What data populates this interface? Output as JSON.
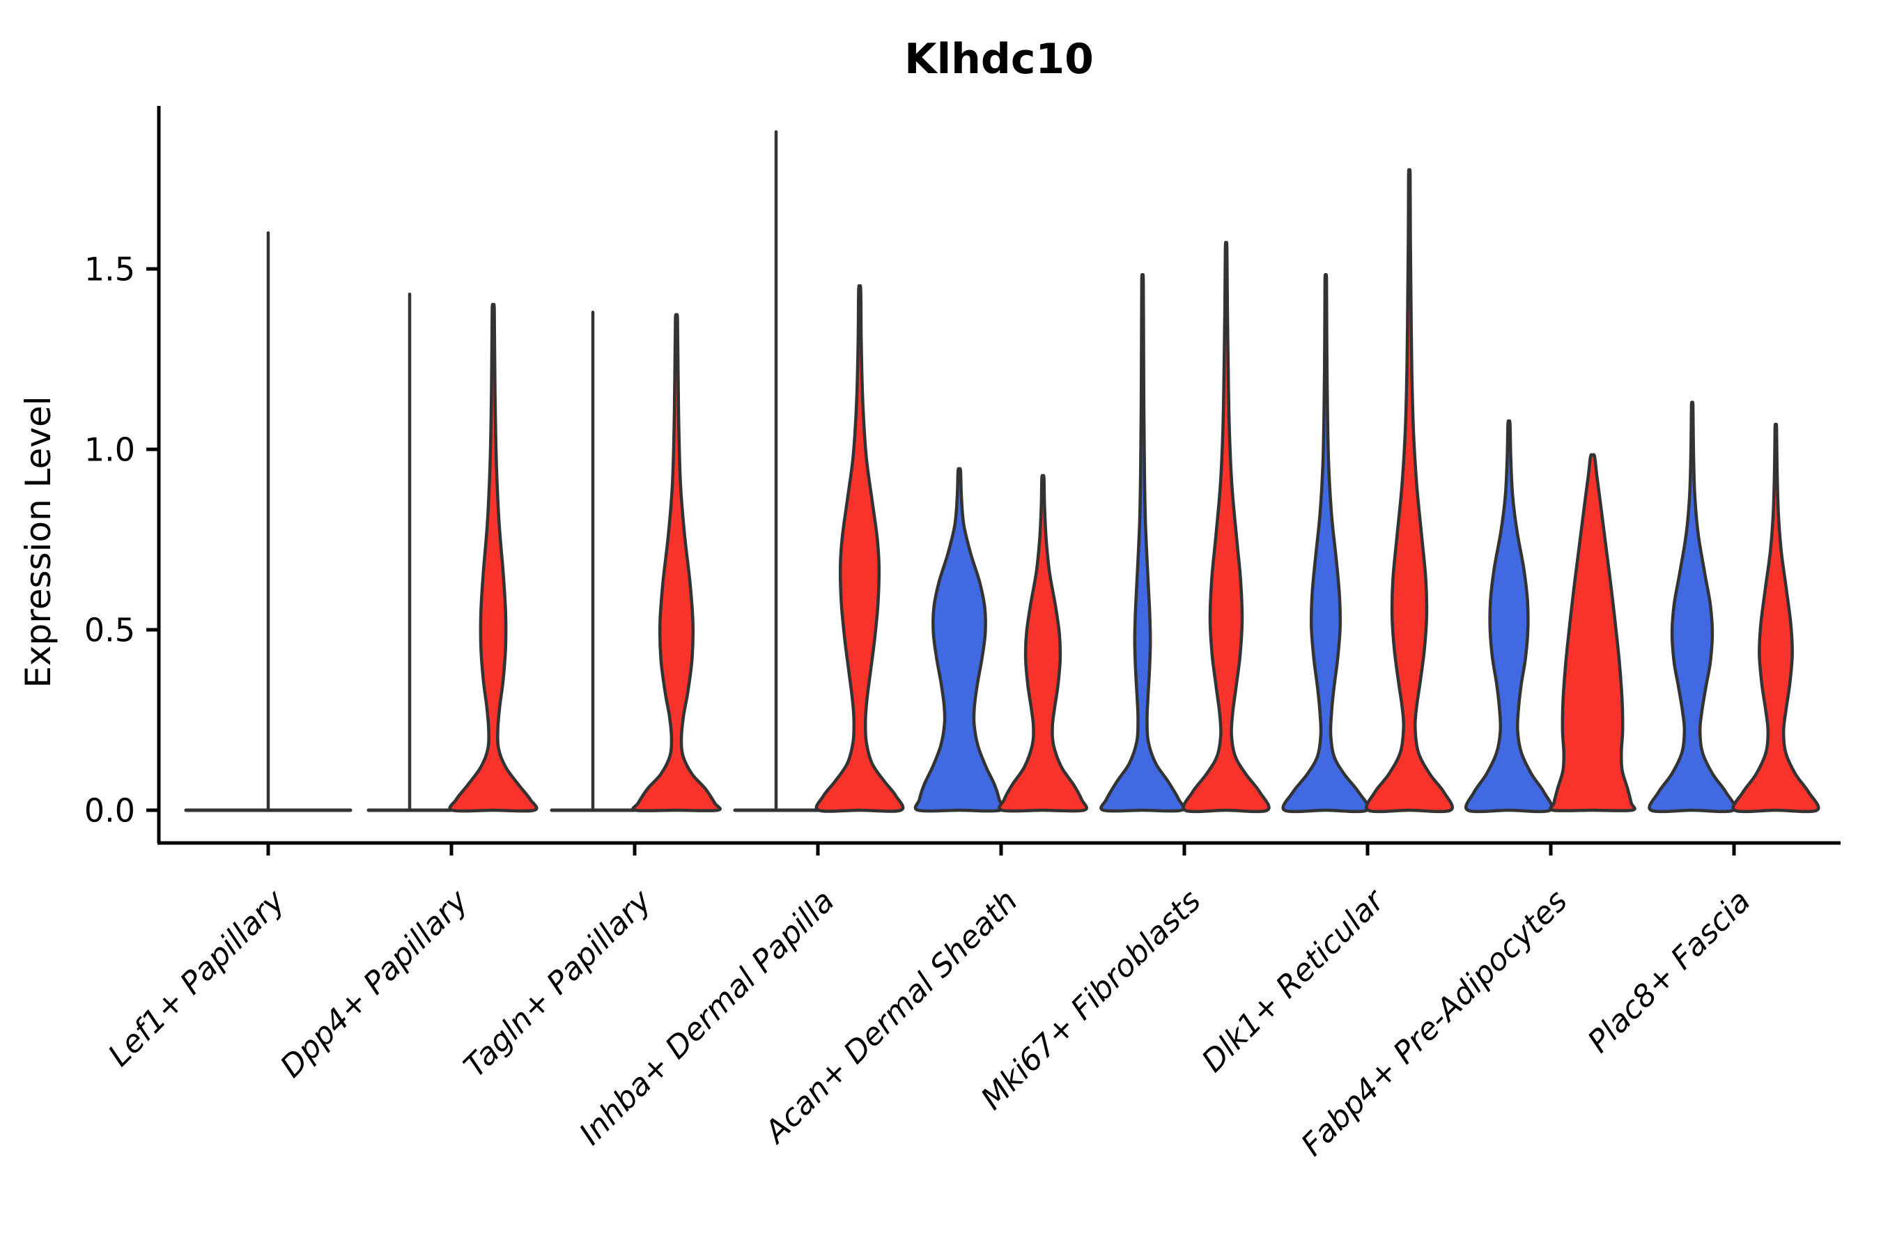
{
  "chart_data": {
    "type": "violin",
    "title": "Klhdc10",
    "ylabel": "Expression Level",
    "xlabel": "",
    "grid": false,
    "legend": "none",
    "ylim": [
      -0.06,
      1.95
    ],
    "ytick_labels": [
      "0.0",
      "0.5",
      "1.0",
      "1.5"
    ],
    "ytick_values": [
      0.0,
      0.5,
      1.0,
      1.5
    ],
    "palette": {
      "blue": "#4169E1",
      "red": "#F8332B",
      "outline": "#333333"
    },
    "categories": [
      {
        "label": "Lef1+ Papillary",
        "violins": [
          {
            "color": "blue",
            "style": "flat",
            "max": 1.6,
            "offset": 0,
            "width": 2
          }
        ]
      },
      {
        "label": "Dpp4+ Papillary",
        "violins": [
          {
            "color": "blue",
            "style": "flat",
            "max": 1.43,
            "offset": -1,
            "width": 1
          },
          {
            "color": "red",
            "style": "curve",
            "max": 1.39,
            "offset": 1,
            "width": 1,
            "profile": [
              [
                1.39,
                0.025
              ],
              [
                1.25,
                0.035
              ],
              [
                1.1,
                0.05
              ],
              [
                0.95,
                0.08
              ],
              [
                0.8,
                0.14
              ],
              [
                0.66,
                0.24
              ],
              [
                0.55,
                0.3
              ],
              [
                0.45,
                0.3
              ],
              [
                0.36,
                0.24
              ],
              [
                0.28,
                0.15
              ],
              [
                0.22,
                0.11
              ],
              [
                0.17,
                0.13
              ],
              [
                0.12,
                0.3
              ],
              [
                0.07,
                0.62
              ],
              [
                0.03,
                0.9
              ],
              [
                0.0,
                1.0
              ]
            ]
          }
        ]
      },
      {
        "label": "Tagln+ Papillary",
        "violins": [
          {
            "color": "blue",
            "style": "flat",
            "max": 1.38,
            "offset": -1,
            "width": 1
          },
          {
            "color": "red",
            "style": "curve",
            "max": 1.36,
            "offset": 1,
            "width": 1,
            "profile": [
              [
                1.36,
                0.025
              ],
              [
                1.2,
                0.04
              ],
              [
                1.05,
                0.06
              ],
              [
                0.9,
                0.1
              ],
              [
                0.76,
                0.2
              ],
              [
                0.63,
                0.33
              ],
              [
                0.52,
                0.4
              ],
              [
                0.42,
                0.38
              ],
              [
                0.33,
                0.28
              ],
              [
                0.26,
                0.17
              ],
              [
                0.2,
                0.12
              ],
              [
                0.15,
                0.16
              ],
              [
                0.1,
                0.38
              ],
              [
                0.06,
                0.7
              ],
              [
                0.02,
                0.93
              ],
              [
                0.0,
                1.0
              ]
            ]
          }
        ]
      },
      {
        "label": "Inhba+ Dermal Papilla",
        "violins": [
          {
            "color": "blue",
            "style": "flat",
            "max": 1.88,
            "offset": -1,
            "width": 1
          },
          {
            "color": "red",
            "style": "curve",
            "max": 1.44,
            "offset": 1,
            "width": 1,
            "profile": [
              [
                1.44,
                0.025
              ],
              [
                1.28,
                0.04
              ],
              [
                1.12,
                0.08
              ],
              [
                0.98,
                0.16
              ],
              [
                0.86,
                0.3
              ],
              [
                0.76,
                0.42
              ],
              [
                0.68,
                0.47
              ],
              [
                0.58,
                0.45
              ],
              [
                0.48,
                0.37
              ],
              [
                0.39,
                0.27
              ],
              [
                0.31,
                0.18
              ],
              [
                0.25,
                0.14
              ],
              [
                0.19,
                0.16
              ],
              [
                0.13,
                0.3
              ],
              [
                0.08,
                0.6
              ],
              [
                0.04,
                0.88
              ],
              [
                0.0,
                1.0
              ]
            ]
          }
        ]
      },
      {
        "label": "Acan+ Dermal Sheath",
        "violins": [
          {
            "color": "blue",
            "style": "curve",
            "max": 0.94,
            "offset": -1,
            "width": 1,
            "profile": [
              [
                0.94,
                0.03
              ],
              [
                0.87,
                0.05
              ],
              [
                0.79,
                0.11
              ],
              [
                0.71,
                0.28
              ],
              [
                0.63,
                0.5
              ],
              [
                0.56,
                0.62
              ],
              [
                0.49,
                0.63
              ],
              [
                0.42,
                0.55
              ],
              [
                0.35,
                0.44
              ],
              [
                0.29,
                0.37
              ],
              [
                0.24,
                0.36
              ],
              [
                0.18,
                0.45
              ],
              [
                0.12,
                0.65
              ],
              [
                0.07,
                0.86
              ],
              [
                0.03,
                0.97
              ],
              [
                0.0,
                1.0
              ]
            ]
          },
          {
            "color": "red",
            "style": "curve",
            "max": 0.92,
            "offset": 1,
            "width": 1,
            "profile": [
              [
                0.92,
                0.025
              ],
              [
                0.84,
                0.04
              ],
              [
                0.75,
                0.08
              ],
              [
                0.66,
                0.16
              ],
              [
                0.57,
                0.3
              ],
              [
                0.49,
                0.4
              ],
              [
                0.42,
                0.42
              ],
              [
                0.35,
                0.37
              ],
              [
                0.28,
                0.28
              ],
              [
                0.23,
                0.23
              ],
              [
                0.18,
                0.26
              ],
              [
                0.12,
                0.45
              ],
              [
                0.07,
                0.75
              ],
              [
                0.03,
                0.94
              ],
              [
                0.0,
                1.0
              ]
            ]
          }
        ]
      },
      {
        "label": "Mki67+ Fibroblasts",
        "violins": [
          {
            "color": "blue",
            "style": "curve",
            "max": 1.47,
            "offset": -1,
            "width": 1,
            "profile": [
              [
                1.47,
                0.018
              ],
              [
                1.3,
                0.025
              ],
              [
                1.12,
                0.032
              ],
              [
                0.95,
                0.045
              ],
              [
                0.8,
                0.07
              ],
              [
                0.67,
                0.12
              ],
              [
                0.56,
                0.17
              ],
              [
                0.47,
                0.19
              ],
              [
                0.39,
                0.17
              ],
              [
                0.31,
                0.13
              ],
              [
                0.25,
                0.11
              ],
              [
                0.19,
                0.14
              ],
              [
                0.13,
                0.32
              ],
              [
                0.08,
                0.62
              ],
              [
                0.03,
                0.88
              ],
              [
                0.0,
                0.95
              ]
            ]
          },
          {
            "color": "red",
            "style": "curve",
            "max": 1.56,
            "offset": 1,
            "width": 1,
            "profile": [
              [
                1.56,
                0.018
              ],
              [
                1.4,
                0.03
              ],
              [
                1.22,
                0.05
              ],
              [
                1.05,
                0.08
              ],
              [
                0.9,
                0.14
              ],
              [
                0.76,
                0.25
              ],
              [
                0.64,
                0.35
              ],
              [
                0.53,
                0.39
              ],
              [
                0.43,
                0.34
              ],
              [
                0.34,
                0.24
              ],
              [
                0.27,
                0.16
              ],
              [
                0.21,
                0.13
              ],
              [
                0.15,
                0.22
              ],
              [
                0.1,
                0.48
              ],
              [
                0.05,
                0.82
              ],
              [
                0.0,
                1.0
              ]
            ]
          }
        ]
      },
      {
        "label": "Dlk1+ Reticular",
        "violins": [
          {
            "color": "blue",
            "style": "curve",
            "max": 1.47,
            "offset": -1,
            "width": 1,
            "profile": [
              [
                1.47,
                0.018
              ],
              [
                1.3,
                0.025
              ],
              [
                1.12,
                0.04
              ],
              [
                0.96,
                0.07
              ],
              [
                0.82,
                0.14
              ],
              [
                0.7,
                0.25
              ],
              [
                0.6,
                0.33
              ],
              [
                0.51,
                0.35
              ],
              [
                0.42,
                0.29
              ],
              [
                0.34,
                0.2
              ],
              [
                0.27,
                0.14
              ],
              [
                0.21,
                0.12
              ],
              [
                0.15,
                0.2
              ],
              [
                0.1,
                0.45
              ],
              [
                0.05,
                0.8
              ],
              [
                0.0,
                1.0
              ]
            ]
          },
          {
            "color": "red",
            "style": "curve",
            "max": 1.76,
            "offset": 1,
            "width": 1,
            "profile": [
              [
                1.76,
                0.018
              ],
              [
                1.58,
                0.025
              ],
              [
                1.4,
                0.04
              ],
              [
                1.22,
                0.06
              ],
              [
                1.05,
                0.1
              ],
              [
                0.9,
                0.18
              ],
              [
                0.76,
                0.3
              ],
              [
                0.64,
                0.4
              ],
              [
                0.54,
                0.42
              ],
              [
                0.45,
                0.37
              ],
              [
                0.36,
                0.27
              ],
              [
                0.29,
                0.18
              ],
              [
                0.23,
                0.14
              ],
              [
                0.16,
                0.22
              ],
              [
                0.1,
                0.5
              ],
              [
                0.05,
                0.84
              ],
              [
                0.0,
                1.0
              ]
            ]
          }
        ]
      },
      {
        "label": "Fabp4+ Pre-Adipocytes",
        "violins": [
          {
            "color": "blue",
            "style": "curve",
            "max": 1.07,
            "offset": -1,
            "width": 1,
            "profile": [
              [
                1.07,
                0.025
              ],
              [
                0.97,
                0.045
              ],
              [
                0.87,
                0.09
              ],
              [
                0.77,
                0.2
              ],
              [
                0.67,
                0.36
              ],
              [
                0.58,
                0.45
              ],
              [
                0.5,
                0.46
              ],
              [
                0.42,
                0.4
              ],
              [
                0.35,
                0.3
              ],
              [
                0.28,
                0.23
              ],
              [
                0.22,
                0.21
              ],
              [
                0.16,
                0.3
              ],
              [
                0.1,
                0.55
              ],
              [
                0.05,
                0.85
              ],
              [
                0.0,
                1.0
              ]
            ]
          },
          {
            "color": "red",
            "style": "curve",
            "max": 0.98,
            "offset": 1,
            "width": 1,
            "profile": [
              [
                0.98,
                0.05
              ],
              [
                0.93,
                0.1
              ],
              [
                0.87,
                0.17
              ],
              [
                0.79,
                0.26
              ],
              [
                0.7,
                0.36
              ],
              [
                0.6,
                0.47
              ],
              [
                0.5,
                0.57
              ],
              [
                0.4,
                0.66
              ],
              [
                0.3,
                0.72
              ],
              [
                0.22,
                0.73
              ],
              [
                0.16,
                0.7
              ],
              [
                0.11,
                0.72
              ],
              [
                0.06,
                0.85
              ],
              [
                0.02,
                0.94
              ],
              [
                0.0,
                0.96
              ]
            ]
          }
        ]
      },
      {
        "label": "Plac8+ Fascia",
        "violins": [
          {
            "color": "blue",
            "style": "curve",
            "max": 1.12,
            "offset": -1,
            "width": 1,
            "profile": [
              [
                1.12,
                0.018
              ],
              [
                1.0,
                0.03
              ],
              [
                0.88,
                0.06
              ],
              [
                0.77,
                0.14
              ],
              [
                0.66,
                0.3
              ],
              [
                0.57,
                0.44
              ],
              [
                0.49,
                0.49
              ],
              [
                0.41,
                0.44
              ],
              [
                0.34,
                0.33
              ],
              [
                0.27,
                0.23
              ],
              [
                0.22,
                0.19
              ],
              [
                0.16,
                0.25
              ],
              [
                0.1,
                0.5
              ],
              [
                0.05,
                0.82
              ],
              [
                0.0,
                1.0
              ]
            ]
          },
          {
            "color": "red",
            "style": "curve",
            "max": 1.06,
            "offset": 1,
            "width": 1,
            "profile": [
              [
                1.06,
                0.018
              ],
              [
                0.95,
                0.03
              ],
              [
                0.83,
                0.06
              ],
              [
                0.72,
                0.13
              ],
              [
                0.61,
                0.26
              ],
              [
                0.51,
                0.37
              ],
              [
                0.43,
                0.4
              ],
              [
                0.35,
                0.34
              ],
              [
                0.28,
                0.25
              ],
              [
                0.22,
                0.19
              ],
              [
                0.16,
                0.24
              ],
              [
                0.1,
                0.48
              ],
              [
                0.05,
                0.8
              ],
              [
                0.0,
                1.0
              ]
            ]
          }
        ]
      }
    ]
  }
}
